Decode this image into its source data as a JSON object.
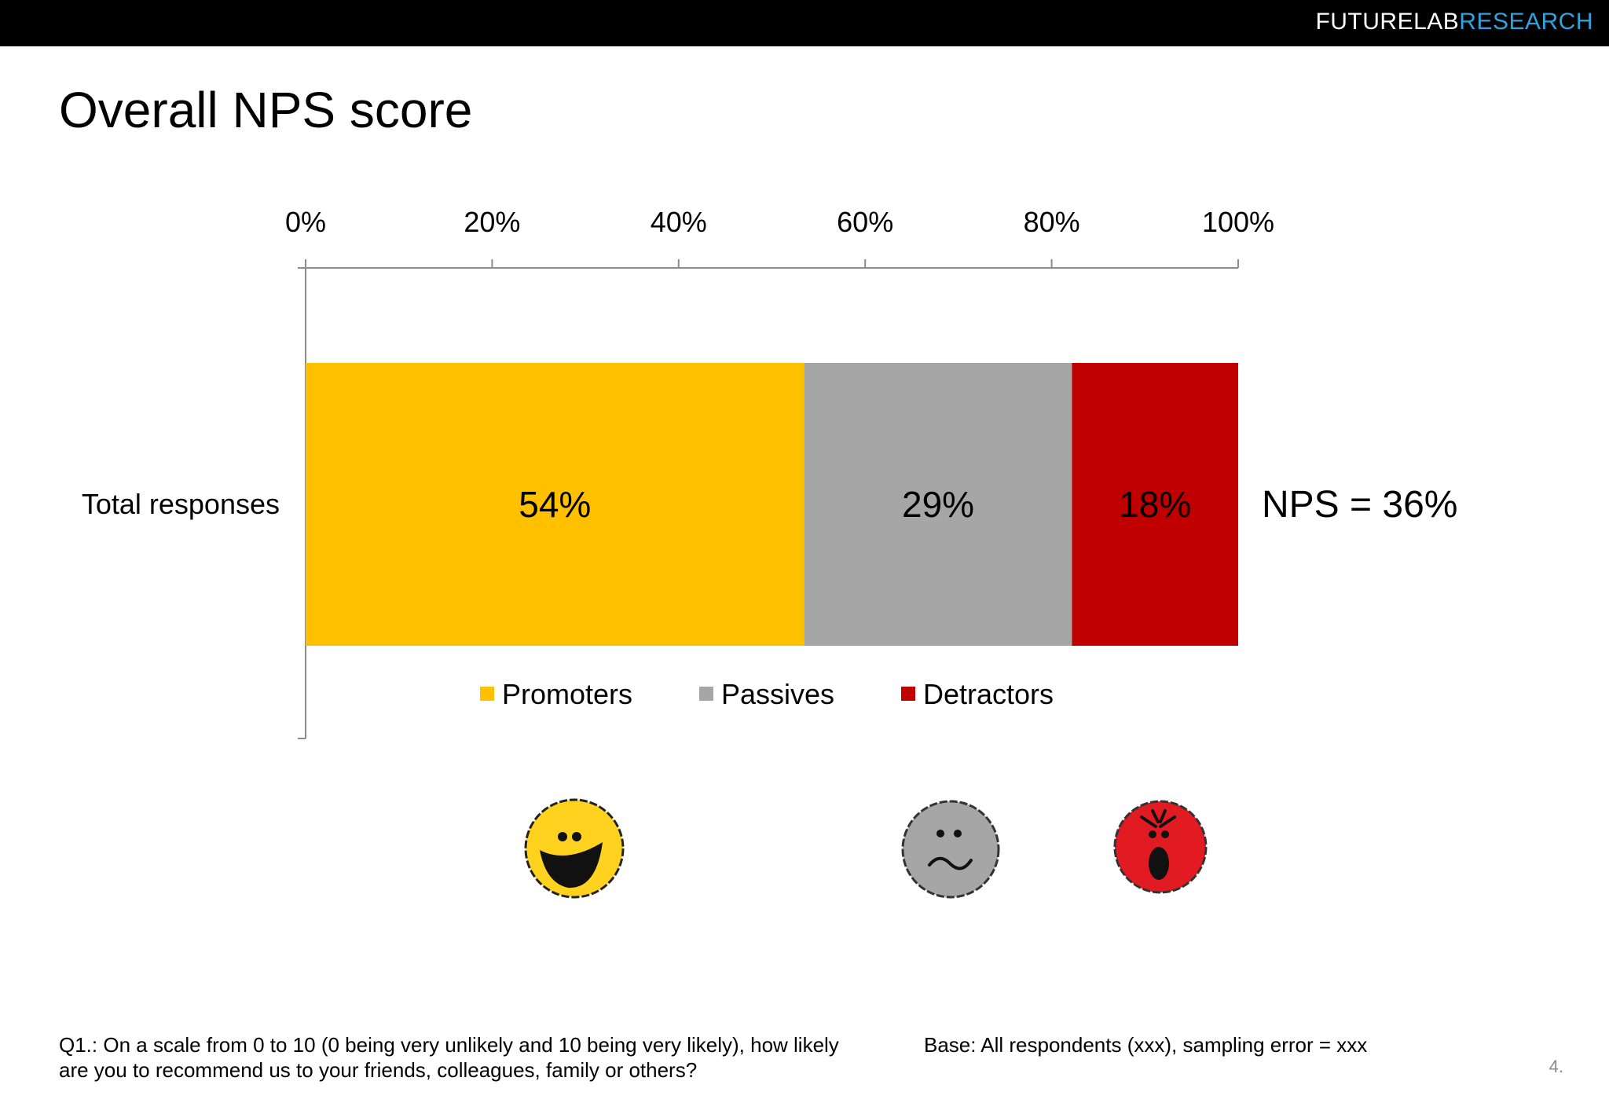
{
  "header": {
    "brand_part1": "FUTURELAB",
    "brand_part2": "RESEARCH"
  },
  "slide": {
    "title": "Overall NPS score",
    "page_number": "4."
  },
  "colors": {
    "promoters": "#FFC000",
    "passives": "#A6A6A6",
    "detractors": "#C00000",
    "brand_accent": "#2EA3DC"
  },
  "chart_data": {
    "type": "bar",
    "orientation": "horizontal",
    "stacked": true,
    "categories": [
      "Total responses"
    ],
    "series": [
      {
        "name": "Promoters",
        "values": [
          54
        ],
        "label": "54%"
      },
      {
        "name": "Passives",
        "values": [
          29
        ],
        "label": "29%"
      },
      {
        "name": "Detractors",
        "values": [
          18
        ],
        "label": "18%"
      }
    ],
    "xlim": [
      0,
      100
    ],
    "xticks": [
      "0%",
      "20%",
      "40%",
      "60%",
      "80%",
      "100%"
    ],
    "axis_position": "top",
    "legend_position": "bottom",
    "annotation": "NPS = 36%"
  },
  "emoticons": [
    {
      "name": "happy-face",
      "color": "#FFD21F"
    },
    {
      "name": "neutral-face",
      "color": "#A6A6A6"
    },
    {
      "name": "angry-face",
      "color": "#E21B23"
    }
  ],
  "footer": {
    "question": "Q1.: On a scale from 0 to 10 (0 being very unlikely and 10 being very likely), how likely are you to recommend us to your friends, colleagues, family or others?",
    "base": "Base: All respondents (xxx), sampling error = xxx"
  }
}
